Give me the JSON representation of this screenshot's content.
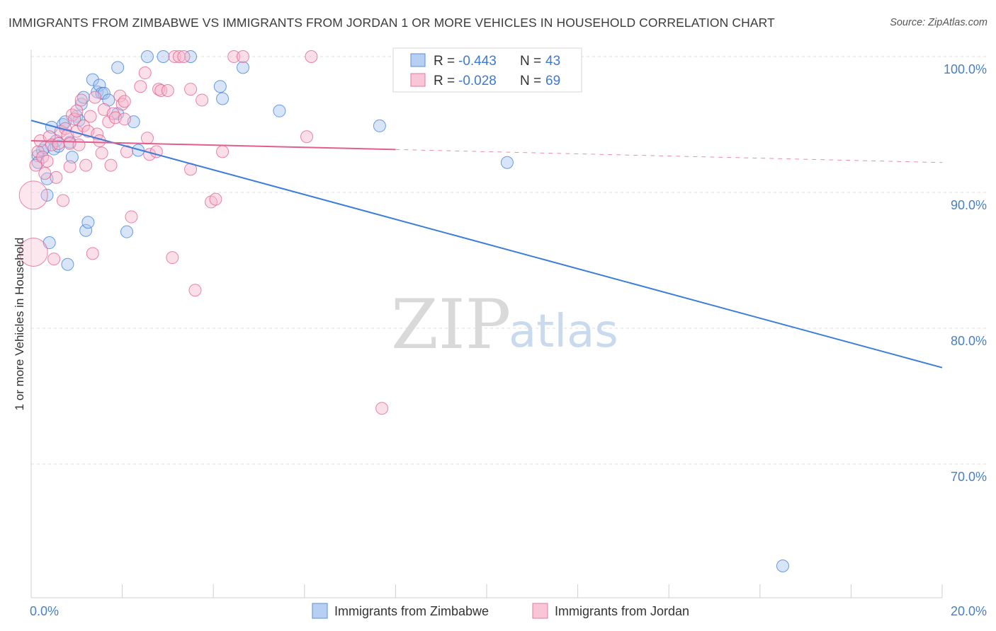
{
  "chart_data": {
    "type": "scatter",
    "title": "IMMIGRANTS FROM ZIMBABWE VS IMMIGRANTS FROM JORDAN 1 OR MORE VEHICLES IN HOUSEHOLD CORRELATION CHART",
    "source": "Source: ZipAtlas.com",
    "ylabel": "1 or more Vehicles in Household",
    "xlim": [
      0,
      20
    ],
    "ylim": [
      60,
      100
    ],
    "x_tick_labels": [
      {
        "value": 0,
        "label": "0.0%"
      },
      {
        "value": 20,
        "label": "20.0%"
      }
    ],
    "y_tick_labels": [
      {
        "value": 100,
        "label": "100.0%"
      },
      {
        "value": 90,
        "label": "90.0%"
      },
      {
        "value": 80,
        "label": "80.0%"
      },
      {
        "value": 70,
        "label": "70.0%"
      }
    ],
    "watermark": {
      "part1": "ZIP",
      "part2": "atlas"
    },
    "legend": {
      "r_prefix": "R = ",
      "n_prefix": "N = ",
      "entries": [
        {
          "r": "-0.443",
          "n": "43"
        },
        {
          "r": "-0.028",
          "n": "69"
        }
      ]
    },
    "series": [
      {
        "name": "Immigrants from Zimbabwe",
        "color": "#3b7dd8",
        "fill": "#a9c6ef",
        "trend": {
          "x": [
            0,
            20
          ],
          "y": [
            95.3,
            77.1
          ],
          "dashed_from": null
        },
        "points": [
          [
            0.15,
            92.7
          ],
          [
            0.15,
            92.2
          ],
          [
            0.25,
            93.1
          ],
          [
            0.3,
            93.3
          ],
          [
            0.35,
            91.0
          ],
          [
            0.35,
            89.8
          ],
          [
            0.4,
            86.3
          ],
          [
            0.45,
            94.8
          ],
          [
            0.5,
            93.2
          ],
          [
            0.55,
            93.8
          ],
          [
            0.6,
            93.4
          ],
          [
            0.7,
            95.0
          ],
          [
            0.75,
            95.2
          ],
          [
            0.8,
            84.7
          ],
          [
            0.85,
            93.7
          ],
          [
            0.9,
            92.6
          ],
          [
            1.0,
            95.6
          ],
          [
            1.05,
            95.3
          ],
          [
            1.1,
            96.5
          ],
          [
            1.15,
            97.0
          ],
          [
            1.2,
            87.2
          ],
          [
            1.25,
            87.8
          ],
          [
            1.35,
            98.3
          ],
          [
            1.45,
            97.4
          ],
          [
            1.5,
            97.9
          ],
          [
            1.55,
            97.3
          ],
          [
            1.6,
            97.3
          ],
          [
            1.7,
            96.8
          ],
          [
            1.9,
            95.8
          ],
          [
            1.9,
            99.2
          ],
          [
            2.1,
            87.1
          ],
          [
            2.25,
            95.2
          ],
          [
            2.35,
            93.1
          ],
          [
            2.55,
            100.0
          ],
          [
            2.9,
            100.0
          ],
          [
            3.5,
            100.0
          ],
          [
            4.15,
            97.8
          ],
          [
            4.2,
            96.9
          ],
          [
            4.65,
            99.2
          ],
          [
            5.45,
            96.0
          ],
          [
            7.65,
            94.9
          ],
          [
            10.45,
            92.2
          ],
          [
            16.5,
            62.5
          ]
        ]
      },
      {
        "name": "Immigrants from Jordan",
        "color": "#e35d8e",
        "fill": "#f6b9cd",
        "trend": {
          "x": [
            0,
            20
          ],
          "y": [
            93.8,
            92.2
          ],
          "dashed_from": 8
        },
        "points": [
          [
            0.05,
            89.8
          ],
          [
            0.05,
            85.6
          ],
          [
            0.1,
            92.0
          ],
          [
            0.15,
            93.0
          ],
          [
            0.2,
            93.8
          ],
          [
            0.25,
            92.6
          ],
          [
            0.3,
            91.4
          ],
          [
            0.35,
            92.3
          ],
          [
            0.4,
            94.1
          ],
          [
            0.45,
            93.5
          ],
          [
            0.5,
            85.1
          ],
          [
            0.55,
            91.1
          ],
          [
            0.6,
            93.6
          ],
          [
            0.65,
            94.5
          ],
          [
            0.7,
            89.4
          ],
          [
            0.75,
            94.7
          ],
          [
            0.8,
            94.2
          ],
          [
            0.85,
            93.6
          ],
          [
            0.85,
            91.9
          ],
          [
            0.9,
            95.7
          ],
          [
            0.95,
            95.4
          ],
          [
            1.0,
            96.0
          ],
          [
            1.0,
            94.5
          ],
          [
            1.05,
            93.5
          ],
          [
            1.1,
            96.8
          ],
          [
            1.15,
            94.9
          ],
          [
            1.2,
            92.0
          ],
          [
            1.25,
            94.5
          ],
          [
            1.3,
            95.6
          ],
          [
            1.35,
            85.5
          ],
          [
            1.4,
            97.0
          ],
          [
            1.45,
            94.3
          ],
          [
            1.5,
            93.8
          ],
          [
            1.55,
            92.9
          ],
          [
            1.6,
            96.1
          ],
          [
            1.7,
            95.2
          ],
          [
            1.75,
            92.0
          ],
          [
            1.8,
            95.8
          ],
          [
            1.85,
            95.5
          ],
          [
            1.95,
            97.1
          ],
          [
            2.0,
            96.5
          ],
          [
            2.05,
            96.7
          ],
          [
            2.05,
            95.4
          ],
          [
            2.1,
            93.0
          ],
          [
            2.2,
            88.2
          ],
          [
            2.4,
            97.8
          ],
          [
            2.5,
            98.8
          ],
          [
            2.55,
            94.0
          ],
          [
            2.6,
            92.8
          ],
          [
            2.75,
            93.0
          ],
          [
            2.8,
            97.6
          ],
          [
            2.85,
            97.5
          ],
          [
            3.0,
            97.5
          ],
          [
            3.1,
            85.2
          ],
          [
            3.15,
            100.0
          ],
          [
            3.25,
            100.0
          ],
          [
            3.35,
            100.0
          ],
          [
            3.5,
            97.6
          ],
          [
            3.5,
            91.7
          ],
          [
            3.6,
            82.8
          ],
          [
            3.75,
            96.8
          ],
          [
            3.95,
            89.3
          ],
          [
            4.05,
            89.5
          ],
          [
            4.2,
            93.0
          ],
          [
            4.45,
            100.0
          ],
          [
            4.65,
            100.0
          ],
          [
            6.05,
            94.1
          ],
          [
            6.15,
            100.0
          ],
          [
            7.7,
            74.1
          ]
        ]
      }
    ]
  }
}
